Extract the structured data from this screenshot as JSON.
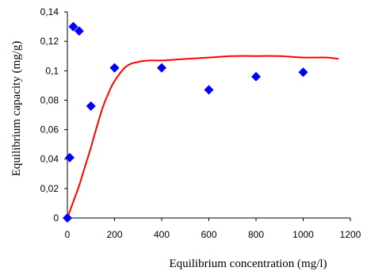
{
  "chart_data": {
    "type": "scatter",
    "xlabel": "Equilibrium concentration (mg/l)",
    "ylabel": "Equilibrium capacity (mg/g)",
    "xlim": [
      0,
      1200
    ],
    "ylim": [
      0,
      0.14
    ],
    "x_ticks": [
      0,
      200,
      400,
      600,
      800,
      1000,
      1200
    ],
    "y_ticks": [
      0,
      0.02,
      0.04,
      0.06,
      0.08,
      0.1,
      0.12,
      0.14
    ],
    "y_tick_labels": [
      "0",
      "0,02",
      "0,04",
      "0,06",
      "0,08",
      "0,1",
      "0,12",
      "0,14"
    ],
    "grid": false,
    "series": [
      {
        "kind": "scatter",
        "marker": "diamond",
        "color": "#0000FF",
        "x": [
          0,
          10,
          25,
          50,
          100,
          200,
          400,
          600,
          800,
          1000
        ],
        "y": [
          0,
          0.041,
          0.13,
          0.127,
          0.076,
          0.102,
          0.102,
          0.087,
          0.096,
          0.099
        ]
      },
      {
        "kind": "line",
        "color": "#FF0000",
        "x": [
          0,
          25,
          50,
          75,
          100,
          125,
          150,
          175,
          200,
          250,
          300,
          350,
          400,
          500,
          600,
          700,
          800,
          900,
          1000,
          1100,
          1150
        ],
        "y": [
          0,
          0.011,
          0.022,
          0.035,
          0.048,
          0.062,
          0.075,
          0.085,
          0.093,
          0.103,
          0.106,
          0.107,
          0.107,
          0.108,
          0.109,
          0.11,
          0.11,
          0.11,
          0.109,
          0.109,
          0.108
        ]
      }
    ]
  }
}
